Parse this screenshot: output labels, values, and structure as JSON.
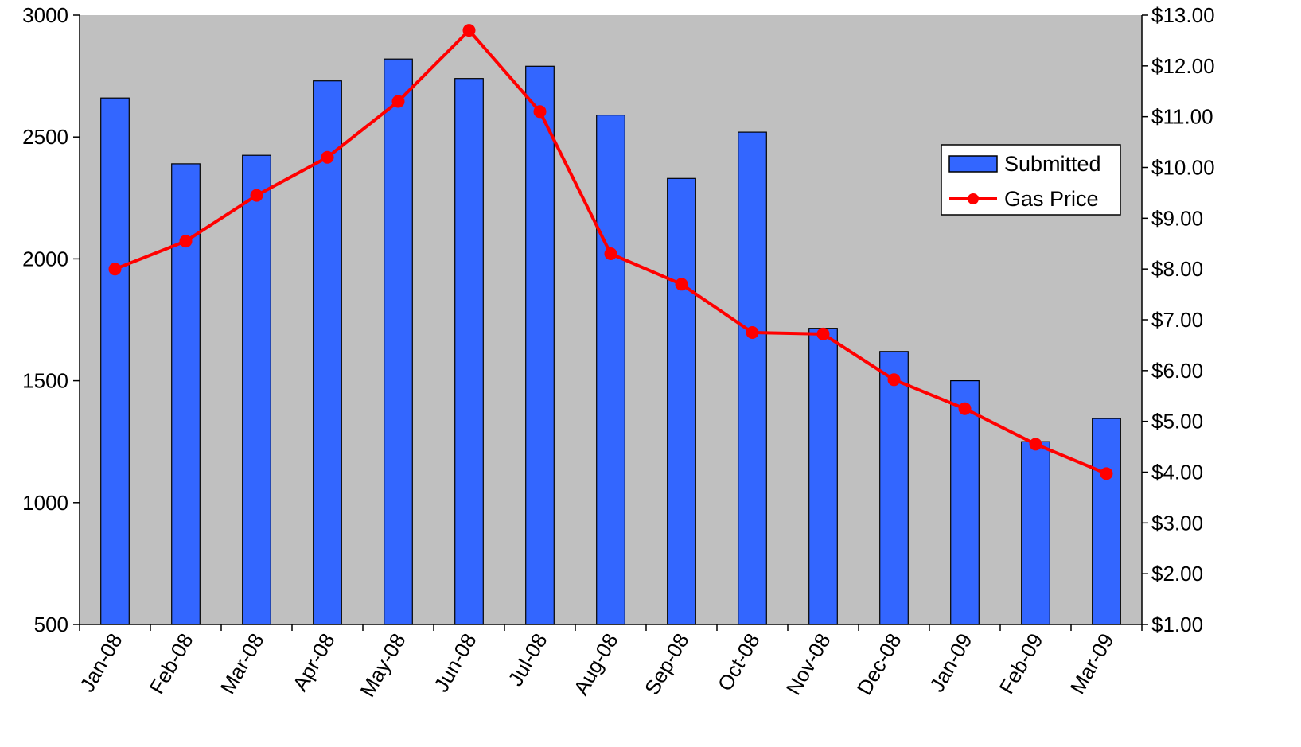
{
  "chart_data": {
    "type": "bar+line",
    "title": "",
    "xlabel": "",
    "ylabel": "",
    "y2label": "",
    "categories": [
      "Jan-08",
      "Feb-08",
      "Mar-08",
      "Apr-08",
      "May-08",
      "Jun-08",
      "Jul-08",
      "Aug-08",
      "Sep-08",
      "Oct-08",
      "Nov-08",
      "Dec-08",
      "Jan-09",
      "Feb-09",
      "Mar-09"
    ],
    "series": [
      {
        "name": "Submitted",
        "type": "bar",
        "axis": "left",
        "color": "#3366ff",
        "values": [
          2660,
          2390,
          2425,
          2730,
          2820,
          2740,
          2790,
          2590,
          2330,
          2520,
          1715,
          1620,
          1500,
          1250,
          1345
        ]
      },
      {
        "name": "Gas Price",
        "type": "line",
        "axis": "right",
        "color": "#ff0000",
        "values": [
          8.0,
          8.55,
          9.45,
          10.2,
          11.3,
          12.7,
          11.1,
          8.3,
          7.7,
          6.75,
          6.72,
          5.82,
          5.25,
          4.55,
          3.97
        ]
      }
    ],
    "ylim": [
      500,
      3000
    ],
    "yticks": [
      "500",
      "1000",
      "1500",
      "2000",
      "2500",
      "3000"
    ],
    "y2lim": [
      1,
      13
    ],
    "y2ticks": [
      "$1.00",
      "$2.00",
      "$3.00",
      "$4.00",
      "$5.00",
      "$6.00",
      "$7.00",
      "$8.00",
      "$9.00",
      "$10.00",
      "$11.00",
      "$12.00",
      "$13.00"
    ],
    "plot_background": "#c0c0c0",
    "grid": false,
    "legend_position": "right"
  }
}
